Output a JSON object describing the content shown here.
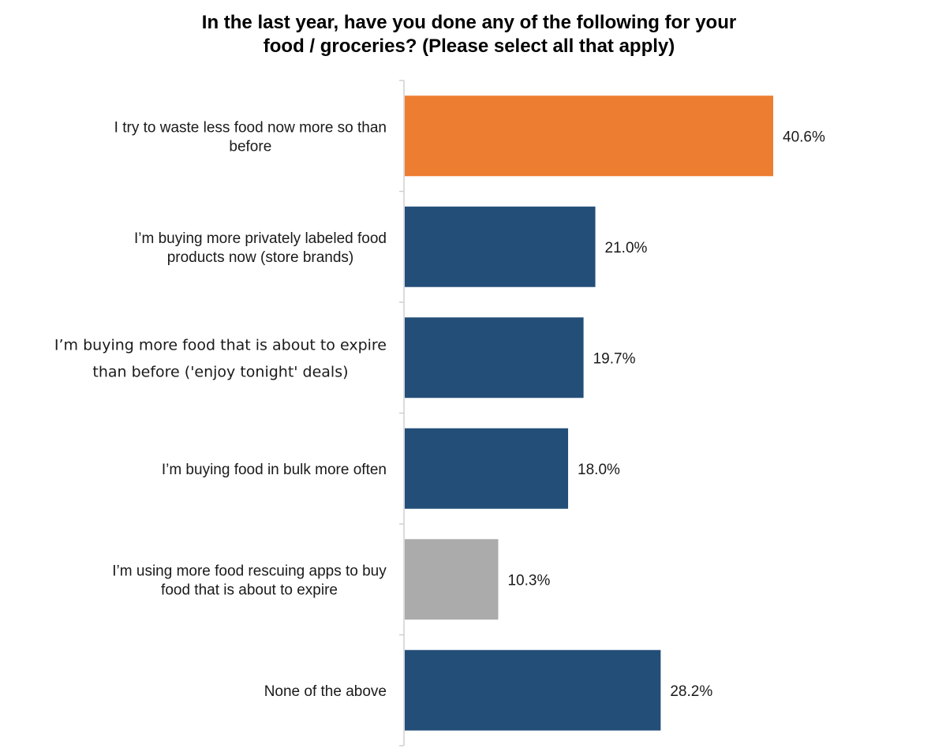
{
  "chart_data": {
    "type": "bar",
    "orientation": "horizontal",
    "title": [
      "In the last year, have you done any of the following for your",
      "food / groceries? (Please select all that apply)"
    ],
    "xlim": [
      0,
      50
    ],
    "grid": false,
    "legend": "none",
    "value_suffix": "%",
    "categories": [
      [
        "I try to waste less food now more so than",
        "before"
      ],
      [
        "I’m buying more privately labeled food",
        "products now (store brands)"
      ],
      [
        "I’m buying more food that is about to expire",
        "than before ('enjoy tonight' deals)"
      ],
      [
        "I’m buying food in bulk more often"
      ],
      [
        "I’m using more food rescuing apps to buy",
        "food that is about to expire"
      ],
      [
        "None of the above"
      ]
    ],
    "values": [
      40.6,
      21.0,
      19.7,
      18.0,
      10.3,
      28.2
    ],
    "value_labels": [
      "40.6%",
      "21.0%",
      "19.7%",
      "18.0%",
      "10.3%",
      "28.2%"
    ],
    "bar_colors": [
      "#ED7D31",
      "#234E78",
      "#234E78",
      "#234E78",
      "#ABABAB",
      "#234E78"
    ]
  },
  "colors": {
    "axis": "#D0D0D0",
    "text": "#1a1a1a"
  }
}
